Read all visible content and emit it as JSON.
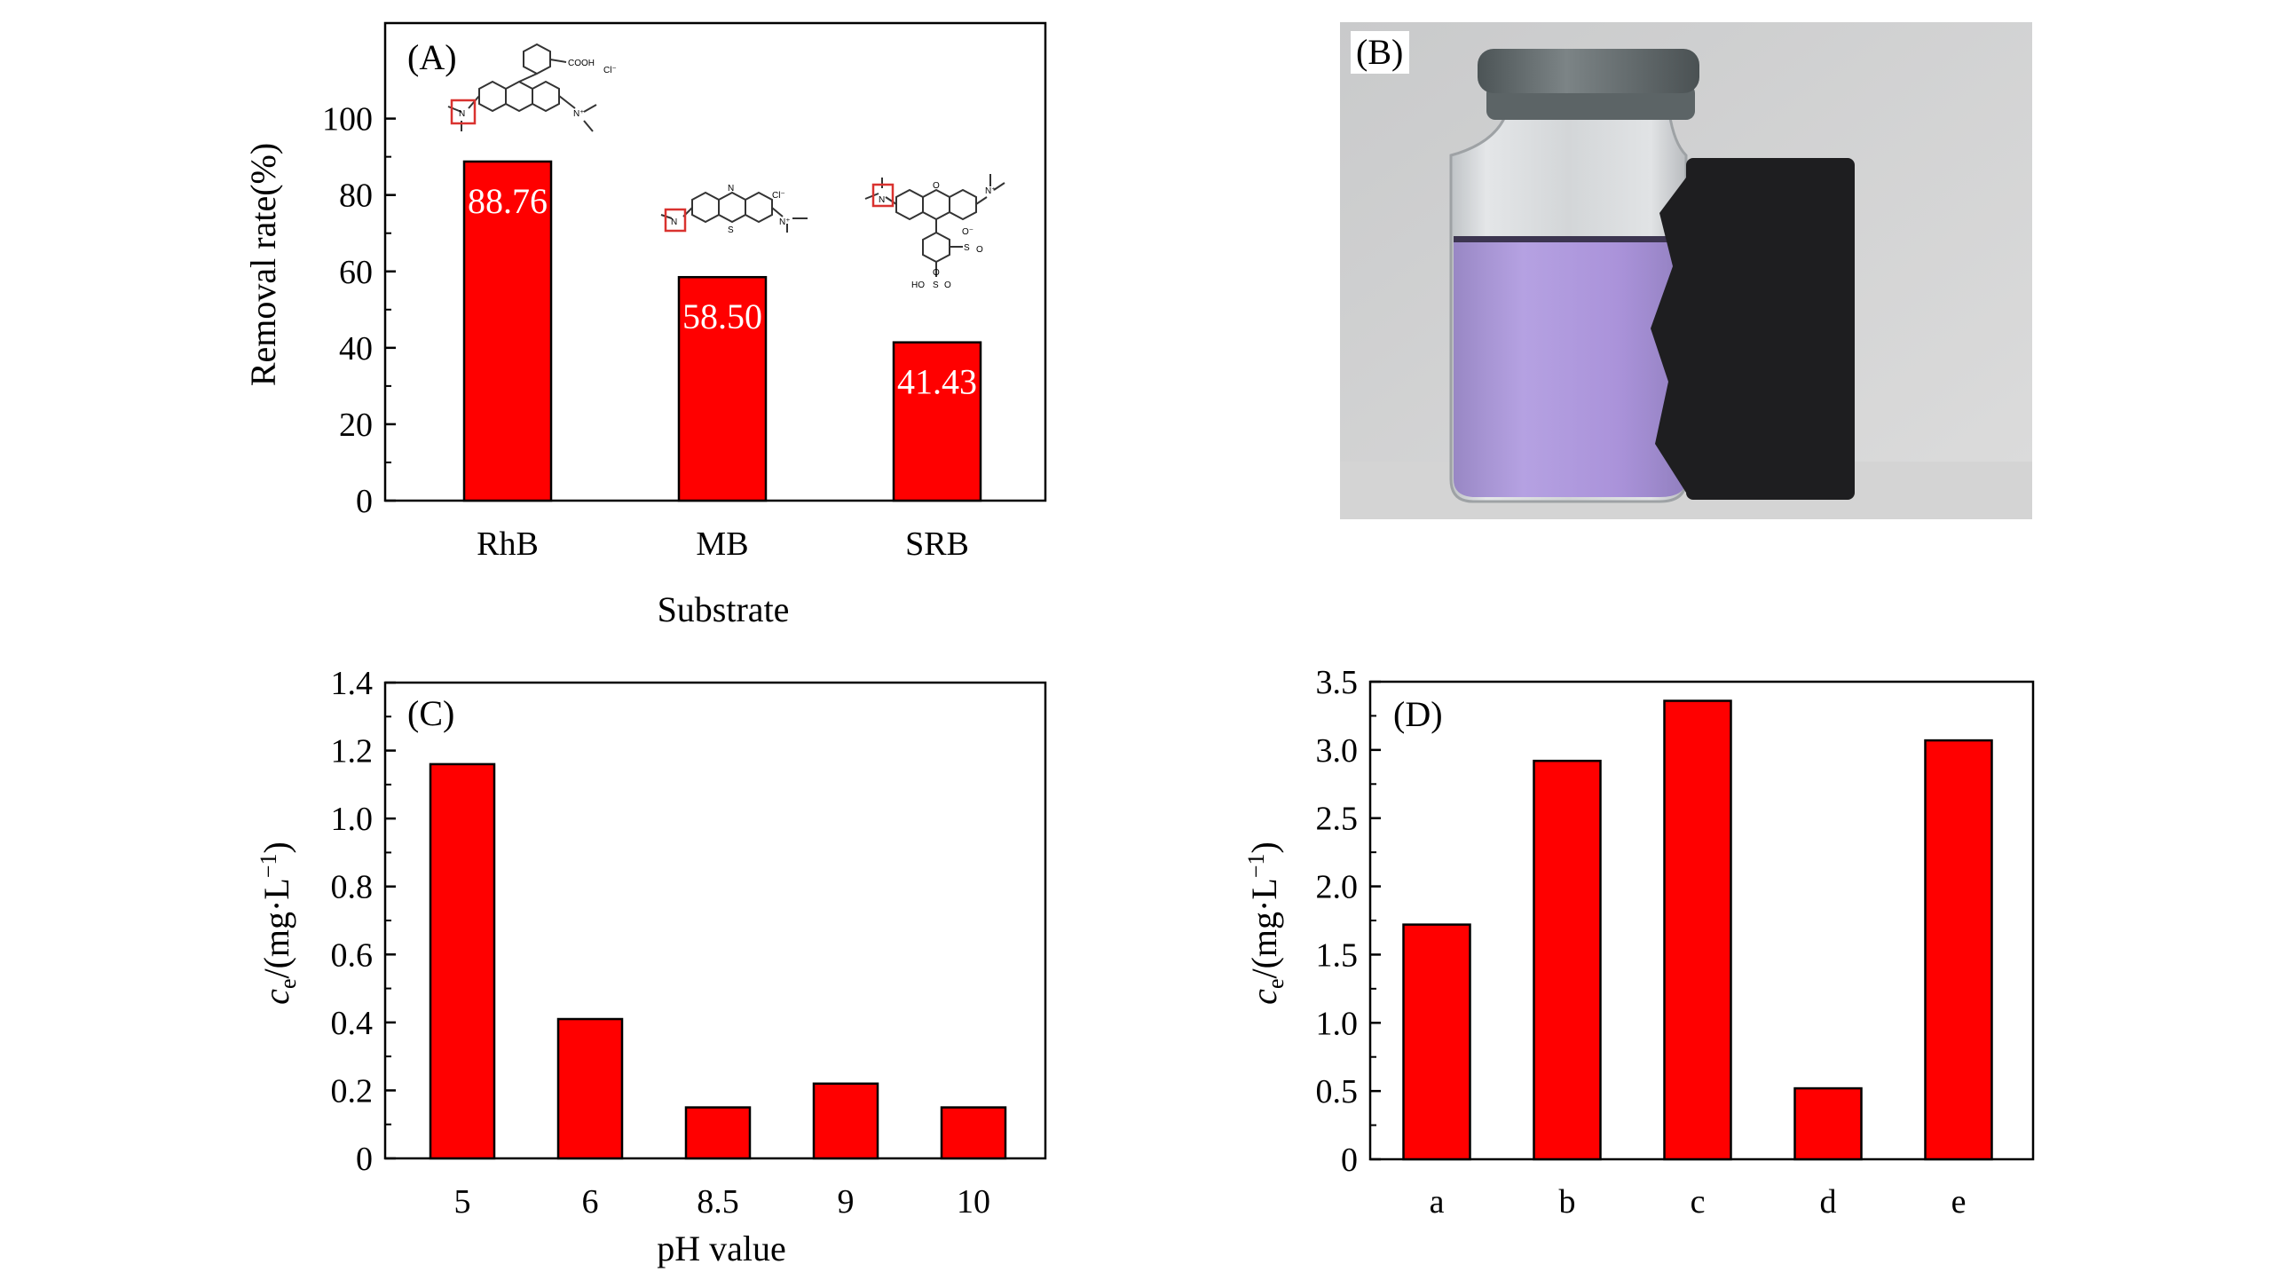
{
  "colors": {
    "bar": "#ff0000",
    "axis": "#000000",
    "highlight_box": "#d9322f",
    "vial_liquid": "#a58bd6",
    "block": "#1e1e20"
  },
  "chart_data": [
    {
      "id": "A",
      "type": "bar",
      "panel_label": "(A)",
      "categories": [
        "RhB",
        "MB",
        "SRB"
      ],
      "values": [
        88.76,
        58.5,
        41.43
      ],
      "data_labels": [
        "88.76",
        "58.50",
        "41.43"
      ],
      "xlabel": "Substrate",
      "ylabel": "Removal rate(%)",
      "ylim": [
        0,
        125
      ],
      "yticks": [
        0,
        20,
        40,
        60,
        80,
        100
      ],
      "ytick_labels": [
        "0",
        "20",
        "40",
        "60",
        "80",
        "100"
      ],
      "structure_labels": {
        "rhb": [
          "COOH",
          "Cl⁻",
          "N",
          "N⁺"
        ],
        "mb": [
          "N",
          "S",
          "N",
          "N⁺",
          "Cl⁻"
        ],
        "srb": [
          "N",
          "N⁺",
          "O",
          "S",
          "O⁻",
          "O",
          "HO",
          "S",
          "O",
          "O"
        ]
      }
    },
    {
      "id": "C",
      "type": "bar",
      "panel_label": "(C)",
      "categories": [
        "5",
        "6",
        "8.5",
        "9",
        "10"
      ],
      "values": [
        1.16,
        0.41,
        0.15,
        0.22,
        0.15
      ],
      "xlabel": "pH value",
      "ylabel_main": "c",
      "ylabel_sub": "e",
      "ylabel_rest": "/(mg·L",
      "ylabel_sup": "−1",
      "ylabel_close": ")",
      "ylim": [
        0,
        1.4
      ],
      "yticks": [
        0,
        0.2,
        0.4,
        0.6,
        0.8,
        1.0,
        1.2,
        1.4
      ],
      "ytick_labels": [
        "0",
        "0.2",
        "0.4",
        "0.6",
        "0.8",
        "1.0",
        "1.2",
        "1.4"
      ]
    },
    {
      "id": "D",
      "type": "bar",
      "panel_label": "(D)",
      "categories": [
        "a",
        "b",
        "c",
        "d",
        "e"
      ],
      "values": [
        1.72,
        2.92,
        3.36,
        0.52,
        3.07
      ],
      "xlabel": "",
      "ylabel_main": "c",
      "ylabel_sub": "e",
      "ylabel_rest": "/(mg·L",
      "ylabel_sup": "−1",
      "ylabel_close": ")",
      "ylim": [
        0,
        3.5
      ],
      "yticks": [
        0,
        0.5,
        1.0,
        1.5,
        2.0,
        2.5,
        3.0,
        3.5
      ],
      "ytick_labels": [
        "0",
        "0.5",
        "1.0",
        "1.5",
        "2.0",
        "2.5",
        "3.0",
        "3.5"
      ]
    }
  ],
  "photo_panel": {
    "panel_label": "(B)"
  }
}
